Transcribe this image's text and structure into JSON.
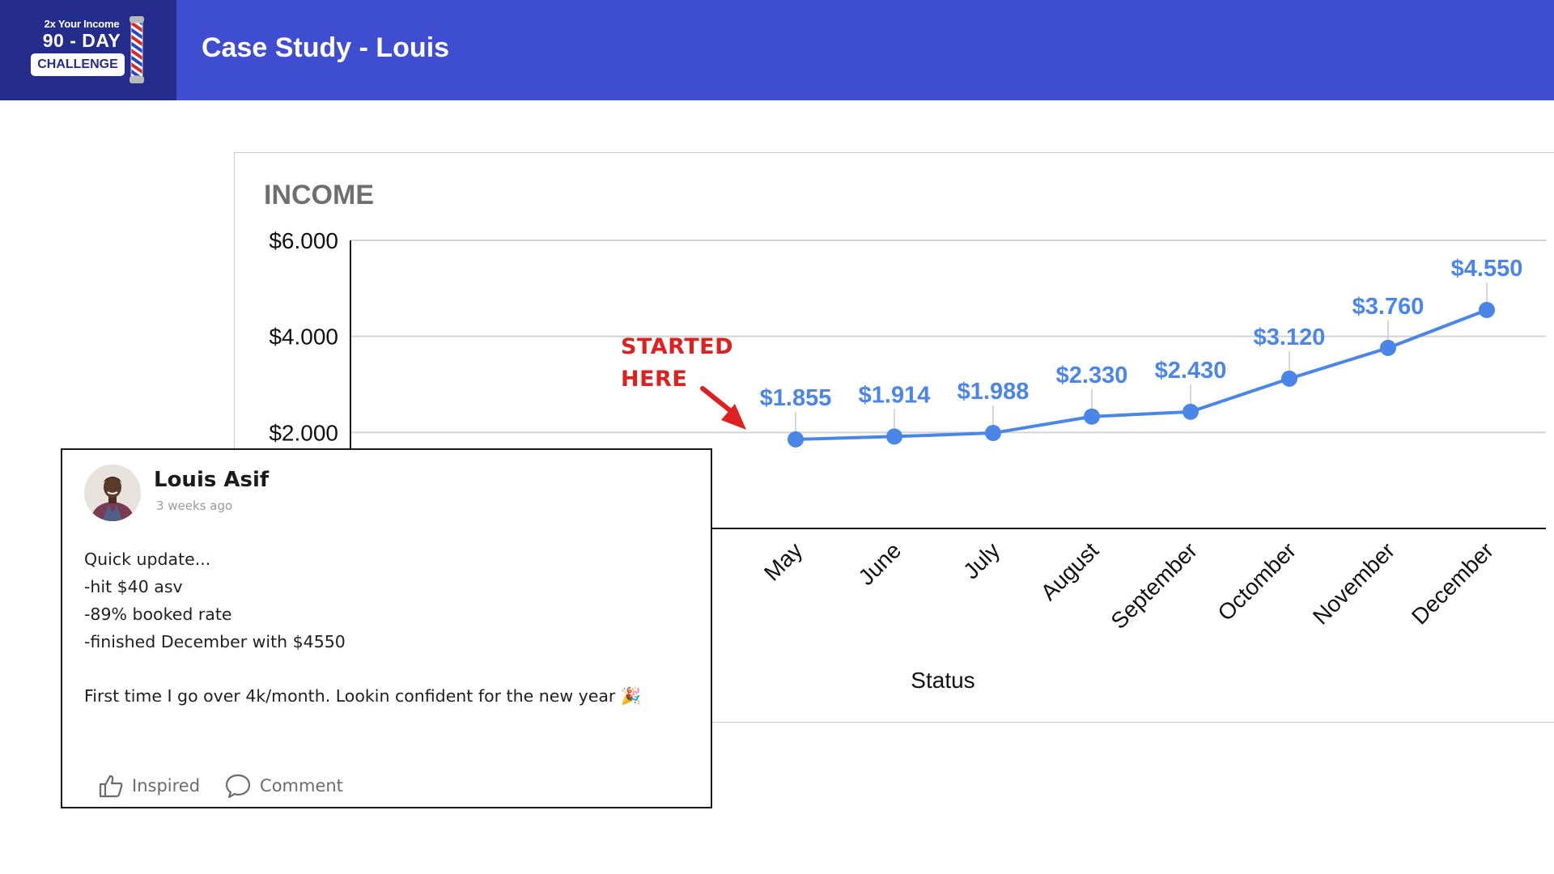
{
  "header": {
    "logo_line1": "2x Your Income",
    "logo_line2": "90 - DAY",
    "logo_line3": "CHALLENGE",
    "title": "Case Study - Louis"
  },
  "chart_data": {
    "type": "line",
    "title": "INCOME",
    "xlabel": "Status",
    "ylabel": "",
    "categories": [
      "May",
      "June",
      "July",
      "August",
      "September",
      "Octomber",
      "November",
      "December"
    ],
    "series": [
      {
        "values": [
          1855,
          1914,
          1988,
          2330,
          2430,
          3120,
          3760,
          4550
        ],
        "data_labels": [
          "$1.855",
          "$1.914",
          "$1.988",
          "$2.330",
          "$2.430",
          "$3.120",
          "$3.760",
          "$4.550"
        ],
        "color": "#4a86e8"
      }
    ],
    "yticks": [
      2000,
      4000,
      6000
    ],
    "ytick_labels": [
      "$2.000",
      "$4.000",
      "$6.000"
    ],
    "ylim": [
      0,
      6000
    ],
    "grid": true,
    "annotation": {
      "line1": "STARTED",
      "line2": "HERE",
      "color": "#e02020",
      "points_to": "May"
    }
  },
  "post": {
    "author": "Louis Asif",
    "time": "3 weeks ago",
    "lines": [
      "Quick update...",
      "-hit $40 asv",
      "-89% booked rate",
      "-finished December with $4550"
    ],
    "closing": "First time I go over 4k/month. Lookin confident for the new year 🎉",
    "actions": {
      "inspired": "Inspired",
      "comment": "Comment"
    }
  }
}
